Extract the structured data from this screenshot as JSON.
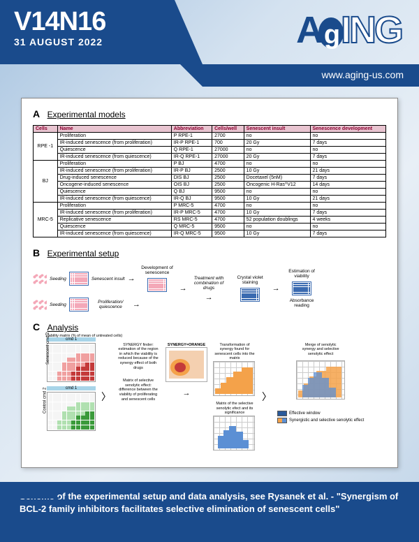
{
  "header": {
    "issue": "V14N16",
    "date": "31 AUGUST 2022",
    "url": "www.aging-us.com",
    "logo": {
      "a": "A",
      "g": "g",
      "ing": "ING"
    }
  },
  "panelA": {
    "label": "A",
    "title": "Experimental models",
    "headers": [
      "Cells",
      "Name",
      "Abbreviation",
      "Cells/well",
      "Senescent insult",
      "Senescence development"
    ],
    "groups": [
      {
        "cell": "RPE -1",
        "rows": [
          [
            "Proliferation",
            "P RPE-1",
            "2700",
            "no",
            "no"
          ],
          [
            "IR-induced senescence (from proliferation)",
            "IR-P RPE-1",
            "700",
            "20 Gy",
            "7 days"
          ],
          [
            "Quiescence",
            "Q RPE-1",
            "27000",
            "no",
            "no"
          ],
          [
            "IR-induced senescence (from quiescence)",
            "IR-Q RPE-1",
            "27000",
            "20 Gy",
            "7 days"
          ]
        ]
      },
      {
        "cell": "BJ",
        "rows": [
          [
            "Proliferation",
            "P BJ",
            "4700",
            "no",
            "no"
          ],
          [
            "IR-induced senescence (from proliferation)",
            "IR-P BJ",
            "2500",
            "10 Gy",
            "21 days"
          ],
          [
            "Drug-induced senescence",
            "DIS BJ",
            "2500",
            "Docetaxel (5nM)",
            "7 days"
          ],
          [
            "Oncogene-induced senescence",
            "OIS BJ",
            "2500",
            "Oncogenic H-Ras^V12",
            "14 days"
          ],
          [
            "Quiescence",
            "Q BJ",
            "9500",
            "no",
            "no"
          ],
          [
            "IR-induced senescence (from quiescence)",
            "IR-Q BJ",
            "9500",
            "10 Gy",
            "21 days"
          ]
        ]
      },
      {
        "cell": "MRC-5",
        "rows": [
          [
            "Proliferation",
            "P MRC-5",
            "4700",
            "no",
            "no"
          ],
          [
            "IR-induced senescence (from proliferation)",
            "IR-P MRC-5",
            "4700",
            "10 Gy",
            "7 days"
          ],
          [
            "Replicative senescence",
            "RS MRC-5",
            "4700",
            "52 population doublings",
            "4 weeks"
          ],
          [
            "Quiescence",
            "Q MRC-5",
            "9500",
            "no",
            "no"
          ],
          [
            "IR-induced senescence (from quiescence)",
            "IR-Q MRC-5",
            "9500",
            "10 Gy",
            "7 days"
          ]
        ]
      }
    ]
  },
  "panelB": {
    "label": "B",
    "title": "Experimental setup",
    "top_row": [
      "Seeding",
      "Senescent insult",
      "Development of senescence",
      "Treatment with combination of drugs",
      "Crystal violet staining",
      "Estimation of viability"
    ],
    "bottom_row": [
      "Seeding",
      "Proliferation/ quiescence",
      "Absorbance reading"
    ]
  },
  "panelC": {
    "label": "C",
    "title": "Analysis",
    "viability_caption": "Viability matrix\n(% of mean of untreated cells)",
    "axis_label": "cmd 1",
    "side_labels": {
      "sen": "Senescent cmd 2",
      "ctrl": "Control cmd 2"
    },
    "synergy_text": "SYNERGY finder: estimation of the region in which the viability is reduced because of the synergy effect of both drugs",
    "synergy_head": "SYNERGY=ORANGE",
    "selective_text": "Matrix of selective senolytic effect: difference between the viability of proliferating and senescent cells",
    "transform_text": "Transformation of synergy found for senescent cells into the matrix",
    "matrix_sel_text": "Matrix of the selective senolytic efect and its significance",
    "merge_text": "Merge of senolytic synergy and selective senolytic effect",
    "legend_effective": "Effective window",
    "legend_syn": "Synergistic and selective senolytic effect",
    "colors": {
      "orange": "#f4a24a",
      "blue": "#5b8fd4",
      "darkblue": "#2a5a9a",
      "red_hi": "#c43a3a",
      "red_lo": "#f0a0a0",
      "green_hi": "#3a9a3a",
      "green_lo": "#b0e0b0",
      "effective_sw": "#3a5a9a"
    }
  },
  "footer": {
    "text": "Scheme of the experimental setup and data analysis, see Rysanek et al. - \"Synergism of BCL-2 family inhibitors facilitates selective elimination of senescent cells\""
  }
}
